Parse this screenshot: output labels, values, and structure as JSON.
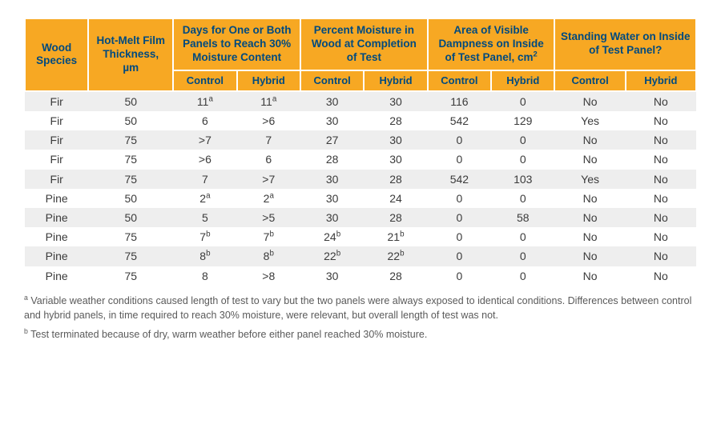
{
  "table": {
    "headers": {
      "species": "Wood Species",
      "thickness": "Hot-Melt Film Thickness, µm",
      "days": "Days for One or Both Panels to Reach 30% Moisture Content",
      "moisture": "Percent Moisture in Wood at Completion of Test",
      "dampness": "Area of Visible Dampness on Inside of Test Panel, cm",
      "standing": "Standing Water on Inside of Test Panel?",
      "control": "Control",
      "hybrid": "Hybrid"
    },
    "col_widths": [
      "9%",
      "12%",
      "9%",
      "9%",
      "9%",
      "9%",
      "9%",
      "9%",
      "10%",
      "10%"
    ],
    "rows": [
      {
        "species": "Fir",
        "thk": "50",
        "dC": "11",
        "dCs": "a",
        "dH": "11",
        "dHs": "a",
        "mC": "30",
        "mCs": "",
        "mH": "30",
        "mHs": "",
        "aC": "116",
        "aH": "0",
        "sC": "No",
        "sH": "No"
      },
      {
        "species": "Fir",
        "thk": "50",
        "dC": "6",
        "dCs": "",
        "dH": ">6",
        "dHs": "",
        "mC": "30",
        "mCs": "",
        "mH": "28",
        "mHs": "",
        "aC": "542",
        "aH": "129",
        "sC": "Yes",
        "sH": "No"
      },
      {
        "species": "Fir",
        "thk": "75",
        "dC": ">7",
        "dCs": "",
        "dH": "7",
        "dHs": "",
        "mC": "27",
        "mCs": "",
        "mH": "30",
        "mHs": "",
        "aC": "0",
        "aH": "0",
        "sC": "No",
        "sH": "No"
      },
      {
        "species": "Fir",
        "thk": "75",
        "dC": ">6",
        "dCs": "",
        "dH": "6",
        "dHs": "",
        "mC": "28",
        "mCs": "",
        "mH": "30",
        "mHs": "",
        "aC": "0",
        "aH": "0",
        "sC": "No",
        "sH": "No"
      },
      {
        "species": "Fir",
        "thk": "75",
        "dC": "7",
        "dCs": "",
        "dH": ">7",
        "dHs": "",
        "mC": "30",
        "mCs": "",
        "mH": "28",
        "mHs": "",
        "aC": "542",
        "aH": "103",
        "sC": "Yes",
        "sH": "No"
      },
      {
        "species": "Pine",
        "thk": "50",
        "dC": "2",
        "dCs": "a",
        "dH": "2",
        "dHs": "a",
        "mC": "30",
        "mCs": "",
        "mH": "24",
        "mHs": "",
        "aC": "0",
        "aH": "0",
        "sC": "No",
        "sH": "No"
      },
      {
        "species": "Pine",
        "thk": "50",
        "dC": "5",
        "dCs": "",
        "dH": ">5",
        "dHs": "",
        "mC": "30",
        "mCs": "",
        "mH": "28",
        "mHs": "",
        "aC": "0",
        "aH": "58",
        "sC": "No",
        "sH": "No"
      },
      {
        "species": "Pine",
        "thk": "75",
        "dC": "7",
        "dCs": "b",
        "dH": "7",
        "dHs": "b",
        "mC": "24",
        "mCs": "b",
        "mH": "21",
        "mHs": "b",
        "aC": "0",
        "aH": "0",
        "sC": "No",
        "sH": "No"
      },
      {
        "species": "Pine",
        "thk": "75",
        "dC": "8",
        "dCs": "b",
        "dH": "8",
        "dHs": "b",
        "mC": "22",
        "mCs": "b",
        "mH": "22",
        "mHs": "b",
        "aC": "0",
        "aH": "0",
        "sC": "No",
        "sH": "No"
      },
      {
        "species": "Pine",
        "thk": "75",
        "dC": "8",
        "dCs": "",
        "dH": ">8",
        "dHs": "",
        "mC": "30",
        "mCs": "",
        "mH": "28",
        "mHs": "",
        "aC": "0",
        "aH": "0",
        "sC": "No",
        "sH": "No"
      }
    ]
  },
  "footnotes": {
    "a_marker": "a",
    "a_text": " Variable weather conditions caused length of test to vary but the two panels were always exposed to identical conditions. Differences between control and hybrid panels, in time required to reach 30% moisture, were relevant, but overall length of test was not.",
    "b_marker": "b",
    "b_text": " Test terminated because of dry, warm weather before either panel reached 30% moisture."
  },
  "colors": {
    "header_bg": "#f7a823",
    "header_text": "#004a7f",
    "row_alt": "#eeeeee",
    "body_text": "#3b3b3b",
    "footnote_text": "#5a5a5a"
  }
}
